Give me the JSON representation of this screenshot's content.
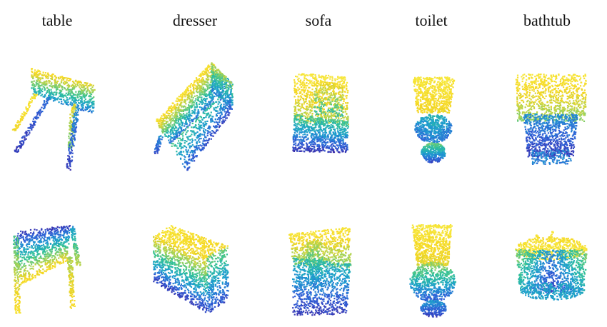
{
  "categories": [
    {
      "id": "table",
      "label": "table"
    },
    {
      "id": "dresser",
      "label": "dresser"
    },
    {
      "id": "sofa",
      "label": "sofa"
    },
    {
      "id": "toilet",
      "label": "toilet"
    },
    {
      "id": "bathtub",
      "label": "bathtub"
    }
  ],
  "colormap": [
    "#3b2ba8",
    "#2f60d8",
    "#1d9fcf",
    "#30c19a",
    "#9fd25a",
    "#f5d522",
    "#f7e83c"
  ]
}
